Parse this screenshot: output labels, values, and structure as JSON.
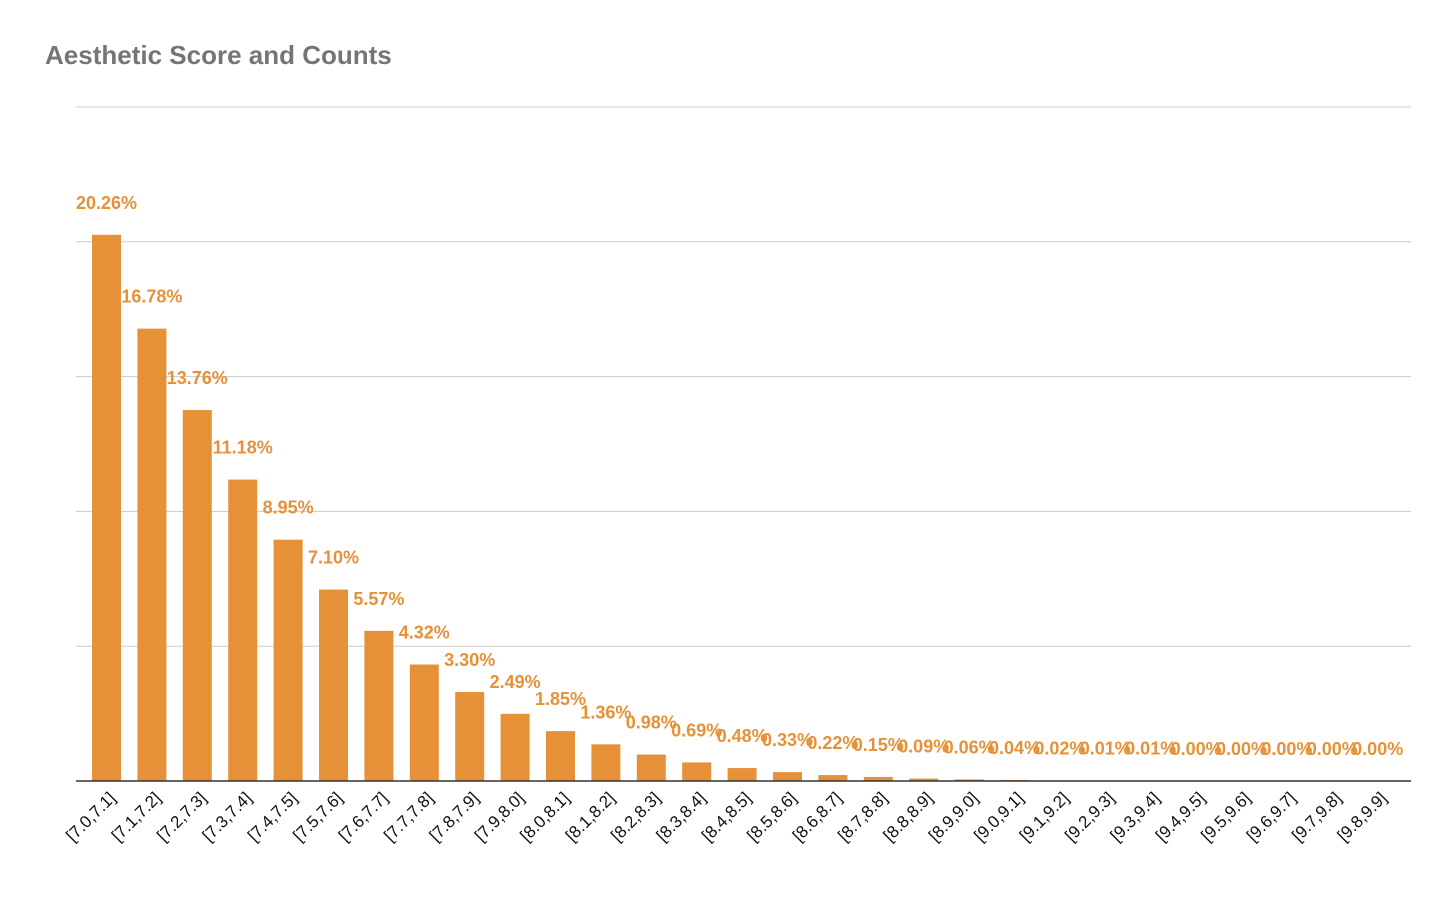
{
  "colors": {
    "bar": "#e69138",
    "label": "#e69138",
    "title": "#757575"
  },
  "chart_data": {
    "type": "bar",
    "title": "Aesthetic Score and Counts",
    "xlabel": "",
    "ylabel": "",
    "ylim": [
      0,
      25
    ],
    "grid": true,
    "categories": [
      "[7.0,7.1]",
      "[7.1,7.2]",
      "[7.2,7.3]",
      "[7.3,7.4]",
      "[7.4,7.5]",
      "[7.5,7.6]",
      "[7.6,7.7]",
      "[7.7,7.8]",
      "[7.8,7.9]",
      "[7.9,8.0]",
      "[8.0,8.1]",
      "[8.1,8.2]",
      "[8.2,8.3]",
      "[8.3,8.4]",
      "[8.4,8.5]",
      "[8.5,8.6]",
      "[8.6,8.7]",
      "[8.7,8.8]",
      "[8.8,8.9]",
      "[8.9,9.0]",
      "[9.0,9.1]",
      "[9.1,9.2]",
      "[9.2,9.3]",
      "[9.3,9.4]",
      "[9.4,9.5]",
      "[9.5,9.6]",
      "[9.6,9.7]",
      "[9.7,9.8]",
      "[9.8,9.9]"
    ],
    "values": [
      20.26,
      16.78,
      13.76,
      11.18,
      8.95,
      7.1,
      5.57,
      4.32,
      3.3,
      2.49,
      1.85,
      1.36,
      0.98,
      0.69,
      0.48,
      0.33,
      0.22,
      0.15,
      0.09,
      0.06,
      0.04,
      0.02,
      0.01,
      0.01,
      0.0,
      0.0,
      0.0,
      0.0,
      0.0
    ],
    "data_labels": [
      "20.26%",
      "16.78%",
      "13.76%",
      "11.18%",
      "8.95%",
      "7.10%",
      "5.57%",
      "4.32%",
      "3.30%",
      "2.49%",
      "1.85%",
      "1.36%",
      "0.98%",
      "0.69%",
      "0.48%",
      "0.33%",
      "0.22%",
      "0.15%",
      "0.09%",
      "0.06%",
      "0.04%",
      "0.02%",
      "0.01%",
      "0.01%",
      "0.00%",
      "0.00%",
      "0.00%",
      "0.00%",
      "0.00%"
    ]
  }
}
